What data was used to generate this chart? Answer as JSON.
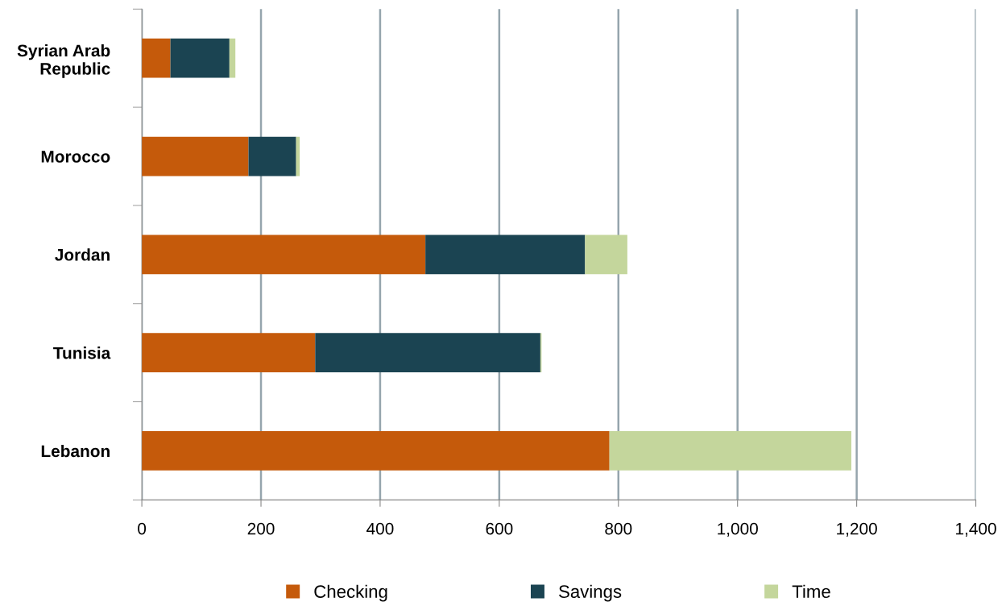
{
  "chart_data": {
    "type": "bar",
    "orientation": "horizontal",
    "stacked": true,
    "categories": [
      "Syrian Arab\nRepublic",
      "Morocco",
      "Jordan",
      "Tunisia",
      "Lebanon"
    ],
    "series": [
      {
        "name": "Checking",
        "color": "#c55a0b",
        "values": [
          48,
          179,
          476,
          291,
          785
        ]
      },
      {
        "name": "Savings",
        "color": "#1b4452",
        "values": [
          99,
          80,
          268,
          378,
          0
        ]
      },
      {
        "name": "Time",
        "color": "#c4d69c",
        "values": [
          10,
          6,
          71,
          2,
          406
        ]
      }
    ],
    "xlim": [
      0,
      1400
    ],
    "xticks": [
      0,
      200,
      400,
      600,
      800,
      {
        "value": 1000,
        "label": "1,000"
      },
      {
        "value": 1200,
        "label": "1,200"
      },
      {
        "value": 1400,
        "label": "1,400"
      }
    ],
    "grid": "x",
    "legend": "bottom"
  }
}
